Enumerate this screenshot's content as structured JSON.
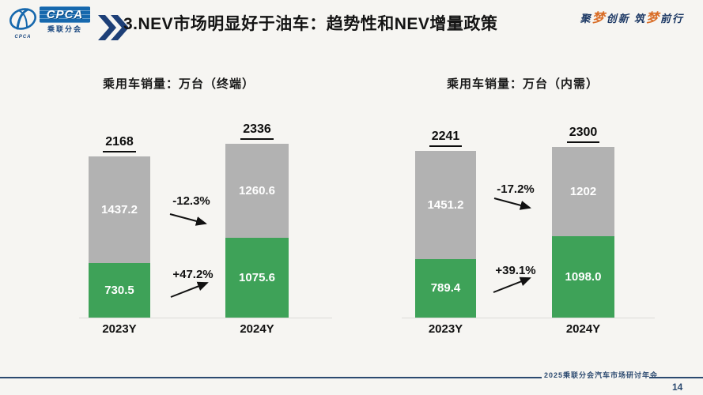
{
  "header": {
    "logo": {
      "brand": "CPCA",
      "brand_caption": "CPCA",
      "subtitle": "乘联分会"
    },
    "title": "3.NEV市场明显好于油车：趋势性和NEV增量政策",
    "slogan": [
      {
        "text": "聚"
      },
      {
        "text": "梦"
      },
      {
        "text": "创新 "
      },
      {
        "text": "筑"
      },
      {
        "text": "梦"
      },
      {
        "text": "前行"
      }
    ]
  },
  "chart_data": [
    {
      "type": "bar",
      "stacked": true,
      "title": "乘用车销量：万台（终端）",
      "categories": [
        "2023Y",
        "2024Y"
      ],
      "series": [
        {
          "name": "fuel-gray-segment",
          "color": "#b2b2b2",
          "values": [
            1437.2,
            1260.6
          ],
          "labels": [
            "1437.2",
            "1260.6"
          ]
        },
        {
          "name": "nev-green-segment",
          "color": "#3ea258",
          "values": [
            730.5,
            1075.6
          ],
          "labels": [
            "730.5",
            "1075.6"
          ]
        }
      ],
      "totals": [
        "2168",
        "2336"
      ],
      "annotations": [
        {
          "label": "-12.3%",
          "direction": "down"
        },
        {
          "label": "+47.2%",
          "direction": "up"
        }
      ],
      "grid": false,
      "legend": "none",
      "unit": "万台"
    },
    {
      "type": "bar",
      "stacked": true,
      "title": "乘用车销量：万台（内需）",
      "categories": [
        "2023Y",
        "2024Y"
      ],
      "series": [
        {
          "name": "fuel-gray-segment",
          "color": "#b2b2b2",
          "values": [
            1451.2,
            1202
          ],
          "labels": [
            "1451.2",
            "1202"
          ]
        },
        {
          "name": "nev-green-segment",
          "color": "#3ea258",
          "values": [
            789.4,
            1098.0
          ],
          "labels": [
            "789.4",
            "1098.0"
          ]
        }
      ],
      "totals": [
        "2241",
        "2300"
      ],
      "annotations": [
        {
          "label": "-17.2%",
          "direction": "down"
        },
        {
          "label": "+39.1%",
          "direction": "up"
        }
      ],
      "grid": false,
      "legend": "none",
      "unit": "万台"
    }
  ],
  "footer": {
    "conference": "2025乘联分会汽车市场研讨年会",
    "page": "14"
  }
}
